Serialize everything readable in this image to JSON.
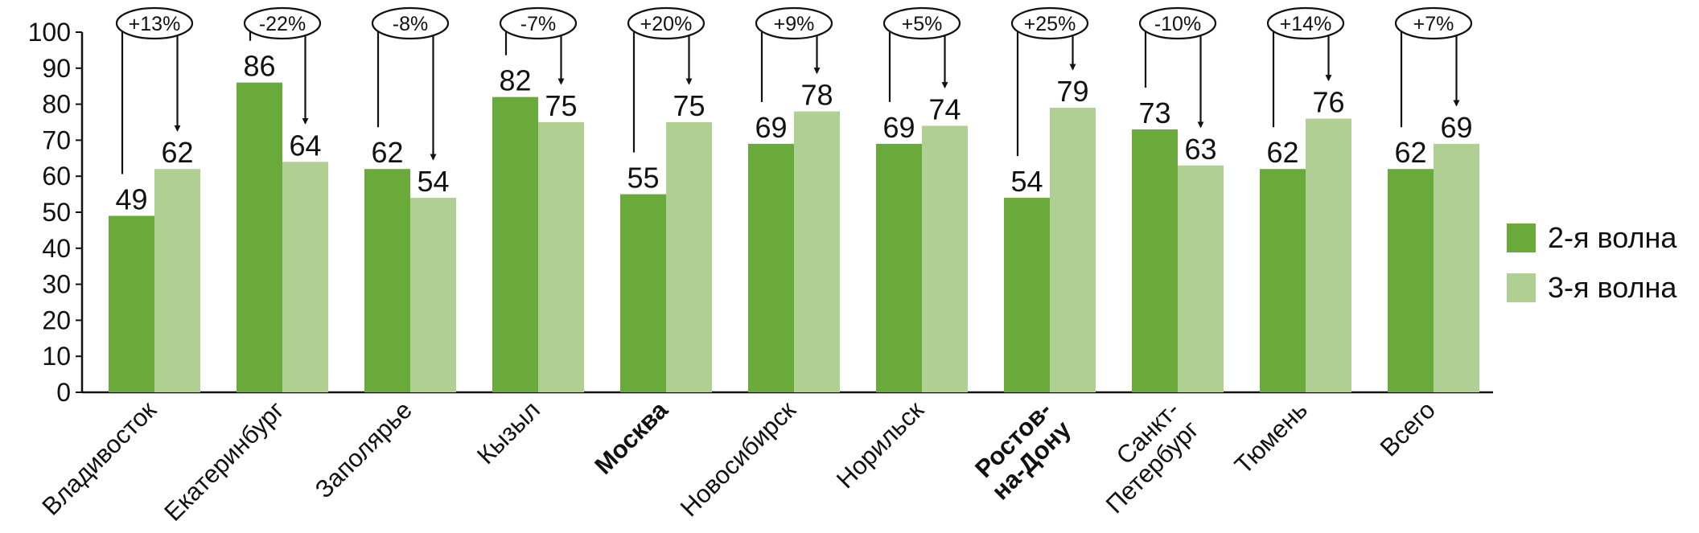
{
  "chart_data": {
    "type": "bar",
    "title": "",
    "xlabel": "",
    "ylabel": "",
    "ylim": [
      0,
      100
    ],
    "yticks": [
      0,
      10,
      20,
      30,
      40,
      50,
      60,
      70,
      80,
      90,
      100
    ],
    "grid": false,
    "legend_position": "right",
    "categories": [
      "Владивосток",
      "Екатеринбург",
      "Заполярье",
      "Кызыл",
      "Москва",
      "Новосибирск",
      "Норильск",
      "Ростов-\nна-Дону",
      "Санкт-\nПетербург",
      "Тюмень",
      "Всего"
    ],
    "bold_categories": [
      "Москва",
      "Ростов-\nна-Дону"
    ],
    "series": [
      {
        "name": "2-я волна",
        "color": "#6aaa3a",
        "values": [
          49,
          86,
          62,
          82,
          55,
          69,
          69,
          54,
          73,
          62,
          62
        ]
      },
      {
        "name": "3-я волна",
        "color": "#b0cf93",
        "values": [
          62,
          64,
          54,
          75,
          75,
          78,
          74,
          79,
          63,
          76,
          69
        ]
      }
    ],
    "changes": [
      "+13%",
      "-22%",
      "-8%",
      "-7%",
      "+20%",
      "+9%",
      "+5%",
      "+25%",
      "-10%",
      "+14%",
      "+7%"
    ]
  }
}
